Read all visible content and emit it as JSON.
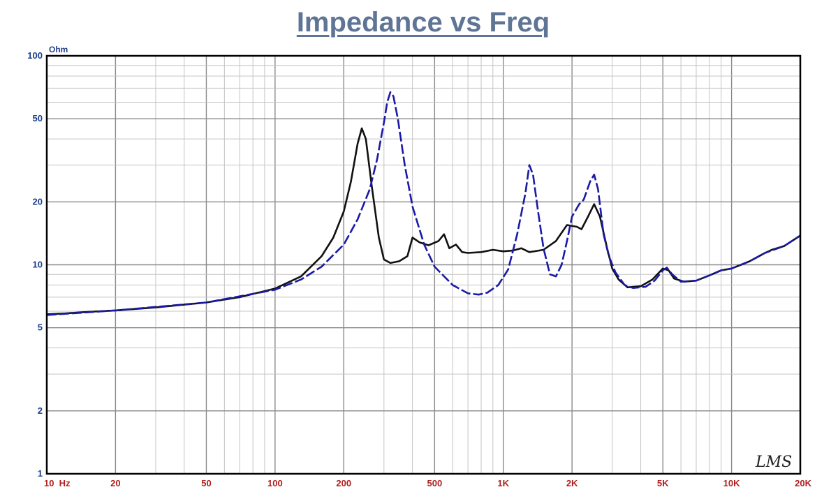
{
  "chart_data": {
    "type": "line",
    "title": "Impedance vs Freq",
    "ylabel": "Ohm",
    "xlabel": "",
    "xscale": "log",
    "yscale": "log",
    "xlim": [
      10,
      20000
    ],
    "ylim": [
      1,
      100
    ],
    "grid": true,
    "x_ticks": [
      {
        "v": 10,
        "label": "10  Hz"
      },
      {
        "v": 20,
        "label": "20"
      },
      {
        "v": 50,
        "label": "50"
      },
      {
        "v": 100,
        "label": "100"
      },
      {
        "v": 200,
        "label": "200"
      },
      {
        "v": 500,
        "label": "500"
      },
      {
        "v": 1000,
        "label": "1K"
      },
      {
        "v": 2000,
        "label": "2K"
      },
      {
        "v": 5000,
        "label": "5K"
      },
      {
        "v": 10000,
        "label": "10K"
      },
      {
        "v": 20000,
        "label": "20K"
      }
    ],
    "y_ticks": [
      {
        "v": 100,
        "label": "100"
      },
      {
        "v": 50,
        "label": "50"
      },
      {
        "v": 20,
        "label": "20"
      },
      {
        "v": 10,
        "label": "10"
      },
      {
        "v": 5,
        "label": "5"
      },
      {
        "v": 2,
        "label": "2"
      },
      {
        "v": 1,
        "label": "1"
      }
    ],
    "series": [
      {
        "color": "#111111",
        "dash": "solid",
        "points": [
          [
            10,
            5.8
          ],
          [
            12,
            5.85
          ],
          [
            15,
            5.95
          ],
          [
            20,
            6.05
          ],
          [
            30,
            6.25
          ],
          [
            50,
            6.6
          ],
          [
            70,
            7.0
          ],
          [
            100,
            7.7
          ],
          [
            130,
            8.8
          ],
          [
            160,
            11.0
          ],
          [
            180,
            13.5
          ],
          [
            200,
            18.0
          ],
          [
            215,
            25.0
          ],
          [
            230,
            38.0
          ],
          [
            240,
            45.0
          ],
          [
            250,
            40.0
          ],
          [
            265,
            24.0
          ],
          [
            285,
            13.5
          ],
          [
            300,
            10.6
          ],
          [
            320,
            10.2
          ],
          [
            350,
            10.4
          ],
          [
            380,
            11.0
          ],
          [
            400,
            13.5
          ],
          [
            430,
            12.8
          ],
          [
            470,
            12.4
          ],
          [
            520,
            13.0
          ],
          [
            550,
            14.0
          ],
          [
            580,
            12.0
          ],
          [
            620,
            12.5
          ],
          [
            660,
            11.5
          ],
          [
            700,
            11.4
          ],
          [
            800,
            11.5
          ],
          [
            900,
            11.8
          ],
          [
            1000,
            11.6
          ],
          [
            1100,
            11.7
          ],
          [
            1200,
            12.0
          ],
          [
            1300,
            11.5
          ],
          [
            1500,
            11.8
          ],
          [
            1700,
            13.0
          ],
          [
            1900,
            15.5
          ],
          [
            2100,
            15.2
          ],
          [
            2200,
            14.8
          ],
          [
            2350,
            17.0
          ],
          [
            2500,
            19.5
          ],
          [
            2650,
            17.0
          ],
          [
            2850,
            12.0
          ],
          [
            3000,
            9.6
          ],
          [
            3200,
            8.5
          ],
          [
            3500,
            7.8
          ],
          [
            4000,
            7.9
          ],
          [
            4500,
            8.5
          ],
          [
            5000,
            9.6
          ],
          [
            5300,
            9.4
          ],
          [
            5600,
            8.6
          ],
          [
            6200,
            8.3
          ],
          [
            7000,
            8.4
          ],
          [
            8000,
            8.9
          ],
          [
            9000,
            9.4
          ],
          [
            10000,
            9.6
          ],
          [
            11000,
            10.0
          ],
          [
            12000,
            10.4
          ],
          [
            13000,
            10.9
          ],
          [
            14000,
            11.4
          ],
          [
            15000,
            11.8
          ],
          [
            17000,
            12.3
          ],
          [
            20000,
            13.8
          ]
        ]
      },
      {
        "color": "#1a1aa6",
        "dash": "dashed",
        "points": [
          [
            10,
            5.75
          ],
          [
            20,
            6.05
          ],
          [
            50,
            6.6
          ],
          [
            100,
            7.6
          ],
          [
            130,
            8.5
          ],
          [
            160,
            9.8
          ],
          [
            200,
            12.5
          ],
          [
            230,
            16.5
          ],
          [
            260,
            23.0
          ],
          [
            280,
            32.0
          ],
          [
            300,
            48.0
          ],
          [
            310,
            60.0
          ],
          [
            320,
            67.0
          ],
          [
            330,
            64.0
          ],
          [
            345,
            50.0
          ],
          [
            370,
            30.0
          ],
          [
            400,
            19.0
          ],
          [
            450,
            12.5
          ],
          [
            500,
            9.8
          ],
          [
            600,
            8.0
          ],
          [
            700,
            7.3
          ],
          [
            780,
            7.2
          ],
          [
            850,
            7.35
          ],
          [
            950,
            8.0
          ],
          [
            1050,
            9.5
          ],
          [
            1150,
            14.0
          ],
          [
            1250,
            22.0
          ],
          [
            1300,
            30.0
          ],
          [
            1350,
            27.0
          ],
          [
            1420,
            18.0
          ],
          [
            1500,
            12.0
          ],
          [
            1600,
            9.0
          ],
          [
            1700,
            8.8
          ],
          [
            1800,
            10.0
          ],
          [
            1900,
            13.0
          ],
          [
            2000,
            17.0
          ],
          [
            2150,
            19.5
          ],
          [
            2250,
            20.5
          ],
          [
            2400,
            25.0
          ],
          [
            2500,
            27.0
          ],
          [
            2600,
            23.0
          ],
          [
            2750,
            14.0
          ],
          [
            2900,
            11.0
          ],
          [
            3100,
            9.2
          ],
          [
            3400,
            8.0
          ],
          [
            3700,
            7.75
          ],
          [
            4200,
            7.85
          ],
          [
            4600,
            8.4
          ],
          [
            5000,
            9.4
          ],
          [
            5200,
            9.7
          ],
          [
            5500,
            9.0
          ],
          [
            6000,
            8.3
          ],
          [
            7000,
            8.4
          ],
          [
            8000,
            8.9
          ],
          [
            9000,
            9.4
          ],
          [
            10000,
            9.6
          ],
          [
            12000,
            10.4
          ],
          [
            14000,
            11.4
          ],
          [
            17000,
            12.3
          ],
          [
            20000,
            13.8
          ]
        ]
      }
    ]
  },
  "brand_text": "LMS"
}
